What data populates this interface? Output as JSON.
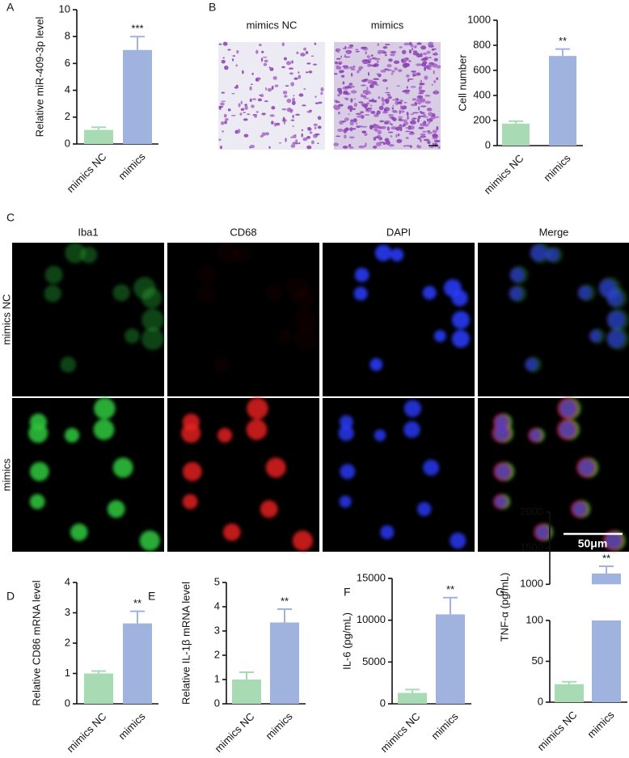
{
  "panel_labels": [
    "A",
    "B",
    "C",
    "D",
    "E",
    "F",
    "G"
  ],
  "images": {
    "B": {
      "labels": [
        "mimics NC",
        "mimics"
      ]
    },
    "C": {
      "columns": [
        "Iba1",
        "CD68",
        "DAPI",
        "Merge"
      ],
      "rows": [
        "mimics NC",
        "mimics"
      ],
      "scale_bar": "50μm"
    }
  },
  "chart_data": [
    {
      "type": "bar",
      "y_label": "Relative miR-409-3p level",
      "categories": [
        "mimics NC",
        "mimics"
      ],
      "values": [
        1.05,
        7.0
      ],
      "errors": [
        0.2,
        1.0
      ],
      "colors": [
        "#a8dab4",
        "#9fb3de"
      ],
      "ylim": [
        0,
        10
      ],
      "yticks": [
        0,
        2,
        4,
        6,
        8,
        10
      ],
      "annotation": "***"
    },
    {
      "type": "bar",
      "y_label": "Cell number",
      "categories": [
        "mimics NC",
        "mimics"
      ],
      "values": [
        175,
        715
      ],
      "errors": [
        20,
        55
      ],
      "colors": [
        "#a8dab4",
        "#9fb3de"
      ],
      "ylim": [
        0,
        1000
      ],
      "yticks": [
        0,
        200,
        400,
        600,
        800,
        1000
      ],
      "annotation": "**"
    },
    {
      "type": "bar",
      "y_label": "Relative CD86 mRNA level",
      "categories": [
        "mimics NC",
        "mimics"
      ],
      "values": [
        1.0,
        2.65
      ],
      "errors": [
        0.08,
        0.4
      ],
      "colors": [
        "#a8dab4",
        "#9fb3de"
      ],
      "ylim": [
        0,
        4
      ],
      "yticks": [
        0,
        1,
        2,
        3,
        4
      ],
      "annotation": "**"
    },
    {
      "type": "bar",
      "y_label": "Relative IL-1β mRNA level",
      "categories": [
        "mimics NC",
        "mimics"
      ],
      "values": [
        1.0,
        3.35
      ],
      "errors": [
        0.3,
        0.55
      ],
      "colors": [
        "#a8dab4",
        "#9fb3de"
      ],
      "ylim": [
        0,
        5
      ],
      "yticks": [
        0,
        1,
        2,
        3,
        4,
        5
      ],
      "annotation": "**"
    },
    {
      "type": "bar",
      "y_label": "IL-6 (pg/mL)",
      "categories": [
        "mimics NC",
        "mimics"
      ],
      "values": [
        1300,
        10700
      ],
      "errors": [
        400,
        2000
      ],
      "colors": [
        "#a8dab4",
        "#9fb3de"
      ],
      "ylim": [
        0,
        15000
      ],
      "yticks": [
        0,
        5000,
        10000,
        15000
      ],
      "annotation": "**"
    },
    {
      "type": "bar",
      "y_label": "TNF-α (pg/mL)",
      "categories": [
        "mimics NC",
        "mimics"
      ],
      "values": [
        22,
        1150
      ],
      "errors": [
        3,
        100
      ],
      "colors": [
        "#a8dab4",
        "#9fb3de"
      ],
      "ylim": [
        0,
        2000
      ],
      "y_break": [
        100,
        1000
      ],
      "yticks": [
        0,
        50,
        100,
        1000,
        1500,
        2000
      ],
      "annotation": "**"
    }
  ]
}
